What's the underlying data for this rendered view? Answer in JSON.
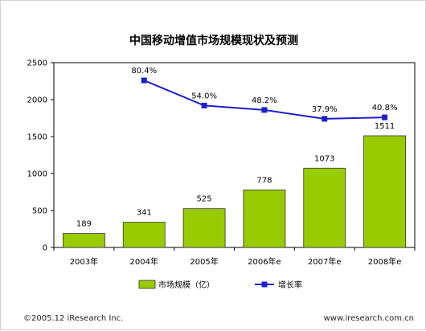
{
  "chart_data": {
    "type": "bar",
    "title": "中国移动增值市场规模现状及预测",
    "categories": [
      "2003年",
      "2004年",
      "2005年",
      "2006年e",
      "2007年e",
      "2008年e"
    ],
    "series": [
      {
        "name": "市场规模（亿）",
        "type": "bar",
        "values": [
          189,
          341,
          525,
          778,
          1073,
          1511
        ],
        "labels": [
          "189",
          "341",
          "525",
          "778",
          "1073",
          "1511"
        ]
      },
      {
        "name": "增长率",
        "type": "line",
        "values": [
          null,
          2260,
          1920,
          1860,
          1740,
          1760
        ],
        "growth_percent": [
          null,
          80.4,
          54.0,
          48.2,
          37.9,
          40.8
        ],
        "labels": [
          null,
          "80.4%",
          "54.0%",
          "48.2%",
          "37.9%",
          "40.8%"
        ]
      }
    ],
    "yticks": [
      "0",
      "500",
      "1000",
      "1500",
      "2000",
      "2500"
    ],
    "ylim": [
      0,
      2500
    ],
    "grid": false,
    "legend": "bottom",
    "xlabel": "",
    "ylabel": "",
    "colors": {
      "bar_fill": "#99cc00",
      "bar_stroke": "#333333",
      "line": "#1f1fc8",
      "plot_bg": "#ffffff"
    }
  },
  "footer": {
    "copyright": "©2005.12  iResearch Inc.",
    "website": "www.iresearch.com.cn"
  }
}
